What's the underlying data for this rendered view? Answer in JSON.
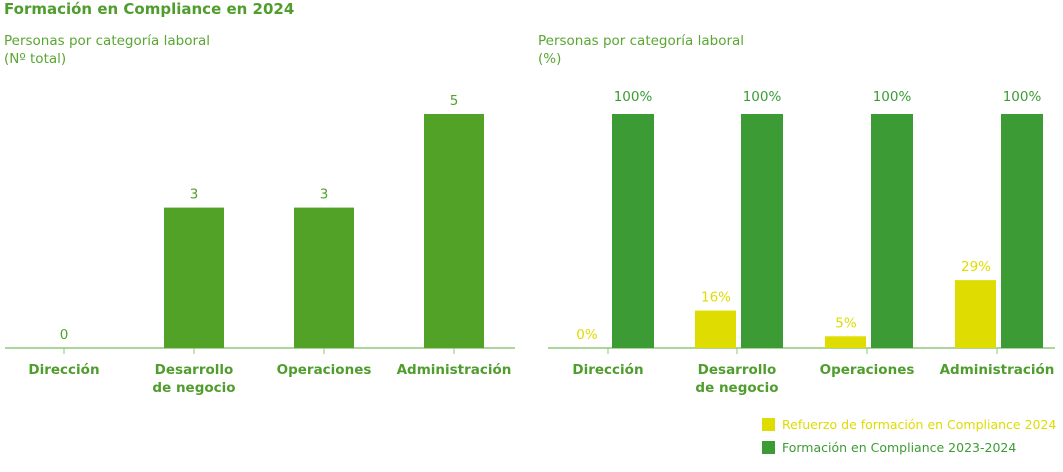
{
  "title": "Formación en Compliance en 2024",
  "colors": {
    "left_bar": "#52a228",
    "yellow": "#dedc00",
    "dark_green": "#3d9b35",
    "axis": "#8fc77a",
    "text_green": "#4f9d2d"
  },
  "chart_data": [
    {
      "type": "bar",
      "subtitle_line1": "Personas por categoría laboral",
      "subtitle_line2": "(Nº total)",
      "categories": [
        [
          "Dirección"
        ],
        [
          "Desarrollo",
          "de negocio"
        ],
        [
          "Operaciones"
        ],
        [
          "Administración"
        ]
      ],
      "values": [
        0,
        3,
        3,
        5
      ],
      "data_labels": [
        "0",
        "3",
        "3",
        "5"
      ],
      "ylim": [
        0,
        5
      ],
      "grid": false
    },
    {
      "type": "bar",
      "subtitle_line1": "Personas por categoría laboral",
      "subtitle_line2": "(%)",
      "categories": [
        [
          "Dirección"
        ],
        [
          "Desarrollo",
          "de negocio"
        ],
        [
          "Operaciones"
        ],
        [
          "Administración"
        ]
      ],
      "series": [
        {
          "name": "Refuerzo de formación en Compliance 2024",
          "values": [
            0,
            16,
            5,
            29
          ],
          "data_labels": [
            "0%",
            "16%",
            "5%",
            "29%"
          ]
        },
        {
          "name": "Formación en Compliance 2023-2024",
          "values": [
            100,
            100,
            100,
            100
          ],
          "data_labels": [
            "100%",
            "100%",
            "100%",
            "100%"
          ]
        }
      ],
      "ylim": [
        0,
        100
      ],
      "grid": false,
      "legend_position": "bottom-right"
    }
  ]
}
